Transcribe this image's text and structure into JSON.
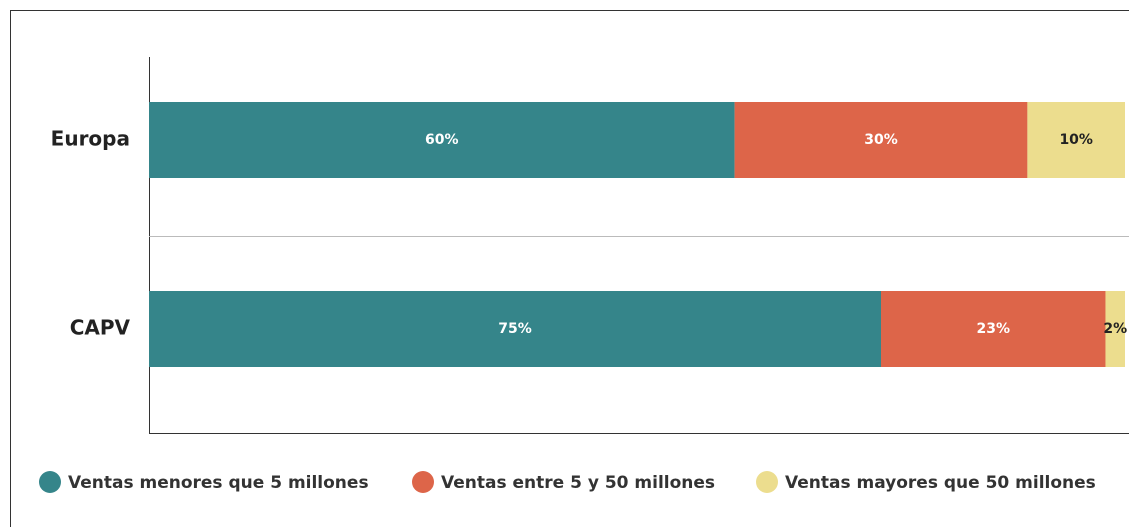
{
  "chart_data": {
    "type": "stacked_bar_horizontal",
    "categories": [
      "Europa",
      "CAPV"
    ],
    "series": [
      {
        "name": "Ventas menores que 5 millones",
        "color": "#35858a",
        "values": [
          60,
          75
        ],
        "value_labels": [
          "60%",
          "75%"
        ],
        "label_color": "#ffffff"
      },
      {
        "name": "Ventas entre 5 y 50 millones",
        "color": "#dd6549",
        "values": [
          30,
          23
        ],
        "value_labels": [
          "30%",
          "23%"
        ],
        "label_color": "#ffffff"
      },
      {
        "name": "Ventas mayores que 50 millones",
        "color": "#ecdd8e",
        "values": [
          10,
          2
        ],
        "value_labels": [
          "10%",
          "2%"
        ],
        "label_color": "#222222"
      }
    ],
    "xlim": [
      0,
      100
    ],
    "legend": "bottom"
  }
}
